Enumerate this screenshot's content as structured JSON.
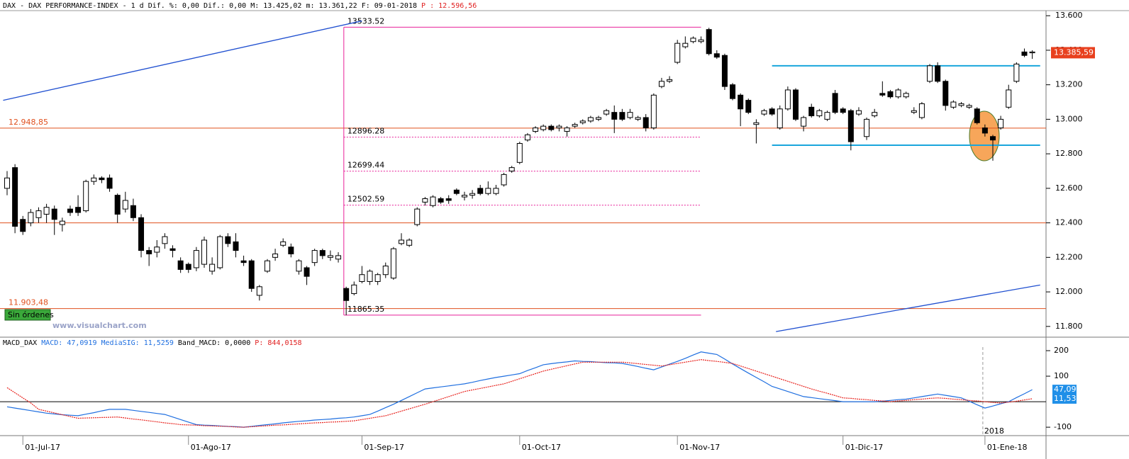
{
  "chart_data": {
    "type": "candlestick",
    "header": {
      "text": "DAX - DAX PERFORMANCE-INDEX - 1 d Dif. %: 0,00 Dif.: 0,00 M: 13.425,02 m: 13.361,22 F: 09-01-2018",
      "price": "P : 12.596,56"
    },
    "watermark": "www.visualchart.com",
    "button": "Sin órdenes",
    "categories": [
      null,
      null,
      "01-Jul-17",
      null,
      null,
      null,
      null,
      null,
      null,
      null,
      null,
      null,
      null,
      null,
      null,
      null,
      null,
      null,
      null,
      null,
      null,
      null,
      null,
      "01-Ago-17",
      null,
      null,
      null,
      null,
      null,
      null,
      null,
      null,
      null,
      null,
      null,
      null,
      null,
      null,
      null,
      null,
      null,
      null,
      null,
      null,
      null,
      "01-Sep-17",
      null,
      null,
      null,
      null,
      null,
      null,
      null,
      null,
      null,
      null,
      null,
      null,
      null,
      null,
      null,
      null,
      null,
      null,
      null,
      "01-Oct-17",
      null,
      null,
      null,
      null,
      null,
      null,
      null,
      null,
      null,
      null,
      null,
      null,
      null,
      null,
      null,
      null,
      null,
      null,
      null,
      "01-Nov-17",
      null,
      null,
      null,
      null,
      null,
      null,
      null,
      null,
      null,
      null,
      null,
      null,
      null,
      null,
      null,
      null,
      null,
      null,
      null,
      null,
      "01-Dic-17",
      null,
      null,
      null,
      null,
      null,
      null,
      null,
      null,
      null,
      null,
      null,
      null,
      null,
      null,
      null,
      null,
      null,
      "01-Ene-18",
      null,
      null,
      null,
      null,
      null,
      null
    ],
    "ohlc": [
      [
        12600,
        12700,
        12560,
        12660
      ],
      [
        12720,
        12740,
        12340,
        12380
      ],
      [
        12420,
        12440,
        12330,
        12350
      ],
      [
        12400,
        12480,
        12380,
        12460
      ],
      [
        12430,
        12490,
        12400,
        12470
      ],
      [
        12450,
        12510,
        12400,
        12490
      ],
      [
        12480,
        12500,
        12330,
        12420
      ],
      [
        12390,
        12430,
        12350,
        12410
      ],
      [
        12480,
        12500,
        12440,
        12460
      ],
      [
        12490,
        12560,
        12440,
        12460
      ],
      [
        12470,
        12650,
        12460,
        12640
      ],
      [
        12640,
        12680,
        12620,
        12660
      ],
      [
        12660,
        12670,
        12630,
        12650
      ],
      [
        12660,
        12680,
        12580,
        12600
      ],
      [
        12560,
        12570,
        12400,
        12450
      ],
      [
        12480,
        12580,
        12460,
        12530
      ],
      [
        12500,
        12540,
        12410,
        12430
      ],
      [
        12430,
        12450,
        12200,
        12240
      ],
      [
        12240,
        12260,
        12150,
        12220
      ],
      [
        12230,
        12300,
        12200,
        12260
      ],
      [
        12280,
        12340,
        12250,
        12320
      ],
      [
        12250,
        12270,
        12200,
        12240
      ],
      [
        12180,
        12200,
        12110,
        12130
      ],
      [
        12160,
        12170,
        12110,
        12130
      ],
      [
        12140,
        12260,
        12120,
        12240
      ],
      [
        12160,
        12320,
        12140,
        12300
      ],
      [
        12120,
        12200,
        12100,
        12160
      ],
      [
        12140,
        12330,
        12130,
        12320
      ],
      [
        12320,
        12340,
        12260,
        12280
      ],
      [
        12290,
        12340,
        12200,
        12240
      ],
      [
        12180,
        12210,
        12150,
        12170
      ],
      [
        12180,
        12190,
        12000,
        12020
      ],
      [
        11980,
        12040,
        11950,
        12030
      ],
      [
        12120,
        12190,
        12110,
        12180
      ],
      [
        12200,
        12250,
        12180,
        12220
      ],
      [
        12270,
        12310,
        12260,
        12290
      ],
      [
        12260,
        12280,
        12200,
        12220
      ],
      [
        12120,
        12190,
        12100,
        12180
      ],
      [
        12140,
        12150,
        12040,
        12090
      ],
      [
        12170,
        12250,
        12150,
        12240
      ],
      [
        12240,
        12250,
        12190,
        12210
      ],
      [
        12200,
        12240,
        12180,
        12210
      ],
      [
        12190,
        12230,
        12170,
        12210
      ],
      [
        12020,
        12030,
        11865,
        11950
      ],
      [
        11990,
        12060,
        11980,
        12040
      ],
      [
        12060,
        12150,
        12050,
        12100
      ],
      [
        12060,
        12130,
        12040,
        12120
      ],
      [
        12060,
        12110,
        12040,
        12100
      ],
      [
        12100,
        12170,
        12080,
        12150
      ],
      [
        12080,
        12260,
        12070,
        12250
      ],
      [
        12280,
        12340,
        12270,
        12300
      ],
      [
        12270,
        12310,
        12260,
        12300
      ],
      [
        12390,
        12490,
        12380,
        12480
      ],
      [
        12520,
        12550,
        12500,
        12540
      ],
      [
        12500,
        12560,
        12490,
        12550
      ],
      [
        12540,
        12550,
        12510,
        12520
      ],
      [
        12540,
        12560,
        12510,
        12530
      ],
      [
        12590,
        12600,
        12560,
        12570
      ],
      [
        12550,
        12580,
        12530,
        12560
      ],
      [
        12560,
        12590,
        12540,
        12570
      ],
      [
        12600,
        12620,
        12560,
        12570
      ],
      [
        12570,
        12640,
        12560,
        12600
      ],
      [
        12570,
        12620,
        12560,
        12600
      ],
      [
        12620,
        12690,
        12610,
        12680
      ],
      [
        12700,
        12730,
        12690,
        12720
      ],
      [
        12750,
        12870,
        12740,
        12860
      ],
      [
        12880,
        12920,
        12870,
        12910
      ],
      [
        12930,
        12960,
        12920,
        12950
      ],
      [
        12940,
        12970,
        12930,
        12960
      ],
      [
        12960,
        12970,
        12930,
        12940
      ],
      [
        12950,
        12970,
        12930,
        12960
      ],
      [
        12930,
        12960,
        12900,
        12950
      ],
      [
        12960,
        12980,
        12950,
        12970
      ],
      [
        12980,
        13000,
        12970,
        12990
      ],
      [
        12990,
        13020,
        12980,
        13010
      ],
      [
        13000,
        13020,
        12990,
        13010
      ],
      [
        13030,
        13060,
        13020,
        13050
      ],
      [
        13040,
        13080,
        12920,
        13000
      ],
      [
        13040,
        13060,
        12990,
        13000
      ],
      [
        13010,
        13060,
        13000,
        13040
      ],
      [
        13000,
        13020,
        12990,
        13010
      ],
      [
        13010,
        13030,
        12930,
        12950
      ],
      [
        12950,
        13150,
        12940,
        13140
      ],
      [
        13190,
        13240,
        13180,
        13220
      ],
      [
        13220,
        13250,
        13210,
        13230
      ],
      [
        13330,
        13460,
        13320,
        13440
      ],
      [
        13420,
        13480,
        13410,
        13440
      ],
      [
        13450,
        13480,
        13440,
        13470
      ],
      [
        13450,
        13480,
        13440,
        13460
      ],
      [
        13520,
        13530,
        13370,
        13380
      ],
      [
        13380,
        13400,
        13350,
        13360
      ],
      [
        13370,
        13380,
        13170,
        13190
      ],
      [
        13200,
        13210,
        13110,
        13120
      ],
      [
        13140,
        13150,
        12960,
        13060
      ],
      [
        13110,
        13120,
        13030,
        13040
      ],
      [
        12970,
        13000,
        12860,
        12980
      ],
      [
        13030,
        13060,
        13020,
        13050
      ],
      [
        13060,
        13070,
        13020,
        13030
      ],
      [
        12950,
        13080,
        12940,
        13060
      ],
      [
        13060,
        13190,
        13050,
        13170
      ],
      [
        13170,
        13180,
        12990,
        13000
      ],
      [
        12960,
        13020,
        12930,
        13010
      ],
      [
        13070,
        13090,
        13010,
        13020
      ],
      [
        13020,
        13060,
        13010,
        13050
      ],
      [
        13000,
        13050,
        12990,
        13040
      ],
      [
        13150,
        13170,
        13030,
        13040
      ],
      [
        13060,
        13070,
        13030,
        13040
      ],
      [
        13050,
        13060,
        12820,
        12870
      ],
      [
        13030,
        13070,
        13020,
        13050
      ],
      [
        12900,
        13010,
        12880,
        13000
      ],
      [
        13020,
        13060,
        13010,
        13040
      ],
      [
        13150,
        13220,
        13130,
        13140
      ],
      [
        13160,
        13170,
        13120,
        13130
      ],
      [
        13130,
        13180,
        13120,
        13170
      ],
      [
        13130,
        13160,
        13120,
        13150
      ],
      [
        13040,
        13070,
        13030,
        13050
      ],
      [
        13010,
        13100,
        13000,
        13090
      ],
      [
        13220,
        13320,
        13210,
        13310
      ],
      [
        13310,
        13330,
        13210,
        13220
      ],
      [
        13220,
        13230,
        13050,
        13080
      ],
      [
        13070,
        13110,
        13060,
        13100
      ],
      [
        13080,
        13100,
        13070,
        13090
      ],
      [
        13070,
        13090,
        13060,
        13080
      ],
      [
        13060,
        13070,
        12970,
        12980
      ],
      [
        12950,
        12970,
        12900,
        12920
      ],
      [
        12900,
        12910,
        12760,
        12880
      ],
      [
        12950,
        13020,
        12940,
        13000
      ],
      [
        13070,
        13200,
        13060,
        13170
      ],
      [
        13220,
        13330,
        13210,
        13320
      ],
      [
        13390,
        13410,
        13360,
        13370
      ],
      [
        13385,
        13400,
        13350,
        13390
      ]
    ],
    "ylim": [
      11750,
      13650
    ],
    "yticks": [
      {
        "value": 13600,
        "label": "13.600"
      },
      {
        "value": 13400,
        "label": "13.400"
      },
      {
        "value": 13200,
        "label": "13.200"
      },
      {
        "value": 13000,
        "label": "13.000"
      },
      {
        "value": 12800,
        "label": "12.800"
      },
      {
        "value": 12600,
        "label": "12.600"
      },
      {
        "value": 12400,
        "label": "12.400"
      },
      {
        "value": 12200,
        "label": "12.200"
      },
      {
        "value": 12000,
        "label": "12.000"
      },
      {
        "value": 11800,
        "label": "11.800"
      }
    ],
    "last_price": {
      "value": 13385.59,
      "label": "13.385,59"
    },
    "levels": [
      {
        "value": 12948.85,
        "label": "12.948,85"
      },
      {
        "value": 12400
      },
      {
        "value": 11903.48,
        "label": "11.903,48"
      }
    ],
    "level_color": "#e0501e",
    "fibonacci": {
      "x": [
        42.7,
        88
      ],
      "levels": [
        13533.52,
        12896.28,
        12699.44,
        12502.59,
        11865.35
      ],
      "color": "#e8209a"
    },
    "channel": {
      "x": [
        97,
        131
      ],
      "levels": [
        13310,
        12850
      ],
      "color": "#1aa6dc"
    },
    "trendlines": [
      {
        "x": [
          -0.5,
          45
        ],
        "y": [
          13110,
          13570
        ]
      },
      {
        "x": [
          97.5,
          131
        ],
        "y": [
          11770,
          12040
        ]
      }
    ],
    "trend_color": "#1f4fd0",
    "macd": {
      "header": {
        "name": "MACD_DAX",
        "macd": "MACD: 47,0919",
        "sig": "MediaSIG: 11,5259",
        "band": "Band_MACD: 0,0000",
        "p": "P: 844,0158"
      },
      "ylim": [
        -133,
        214
      ],
      "yticks": [
        200,
        100,
        -100
      ],
      "year_label": "2018",
      "series": [
        {
          "name": "MACD",
          "color": "#1f6fe0",
          "values": [
            -20,
            -25,
            -30,
            -35,
            -40,
            -45,
            -48,
            -51,
            -53,
            -55,
            -49,
            -43,
            -36,
            -30,
            -30,
            -30,
            -34,
            -38,
            -42,
            -46,
            -50,
            -60,
            -70,
            -80,
            -90,
            -92,
            -93,
            -95,
            -97,
            -98,
            -100,
            -97,
            -93,
            -90,
            -87,
            -83,
            -80,
            -77,
            -75,
            -72,
            -70,
            -68,
            -65,
            -63,
            -60,
            -55,
            -50,
            -37,
            -23,
            -10,
            5,
            20,
            35,
            50,
            54,
            58,
            62,
            66,
            70,
            76,
            83,
            89,
            95,
            100,
            105,
            110,
            122,
            133,
            145,
            149,
            153,
            156,
            160,
            158,
            157,
            155,
            153,
            152,
            150,
            144,
            138,
            131,
            125,
            136,
            147,
            158,
            170,
            183,
            195,
            190,
            185,
            167,
            148,
            130,
            112,
            95,
            78,
            60,
            50,
            40,
            30,
            20,
            16,
            12,
            8,
            4,
            0,
            0,
            0,
            0,
            0,
            2,
            5,
            8,
            10,
            15,
            20,
            25,
            30,
            25,
            20,
            15,
            2,
            -12,
            -25,
            -17,
            -8,
            0,
            16,
            31,
            47.09
          ]
        },
        {
          "name": "MediaSIG",
          "color": "#e8231e",
          "values": [
            55,
            35,
            15,
            -5,
            -30,
            -37,
            -44,
            -51,
            -58,
            -65,
            -64,
            -63,
            -62,
            -61,
            -60,
            -64,
            -68,
            -71,
            -75,
            -79,
            -83,
            -86,
            -90,
            -91,
            -92,
            -94,
            -95,
            -96,
            -97,
            -99,
            -100,
            -98,
            -96,
            -94,
            -92,
            -91,
            -89,
            -87,
            -85,
            -83,
            -82,
            -80,
            -79,
            -77,
            -75,
            -70,
            -65,
            -60,
            -55,
            -46,
            -37,
            -28,
            -19,
            -10,
            0,
            10,
            20,
            30,
            40,
            46,
            52,
            58,
            64,
            70,
            80,
            90,
            100,
            110,
            120,
            127,
            134,
            141,
            148,
            155,
            155,
            155,
            155,
            155,
            155,
            152,
            149,
            146,
            143,
            140,
            145,
            150,
            155,
            160,
            165,
            161,
            158,
            154,
            150,
            140,
            130,
            120,
            110,
            100,
            90,
            80,
            70,
            60,
            50,
            41,
            33,
            24,
            15,
            13,
            10,
            8,
            5,
            3,
            0,
            3,
            5,
            8,
            10,
            13,
            15,
            13,
            10,
            8,
            5,
            3,
            0,
            -3,
            -5,
            -2,
            2,
            7,
            11.53
          ]
        }
      ],
      "last_labels": [
        {
          "value": 47.09,
          "label": "47,09"
        },
        {
          "value": 11.53,
          "label": "11,53"
        }
      ]
    }
  }
}
